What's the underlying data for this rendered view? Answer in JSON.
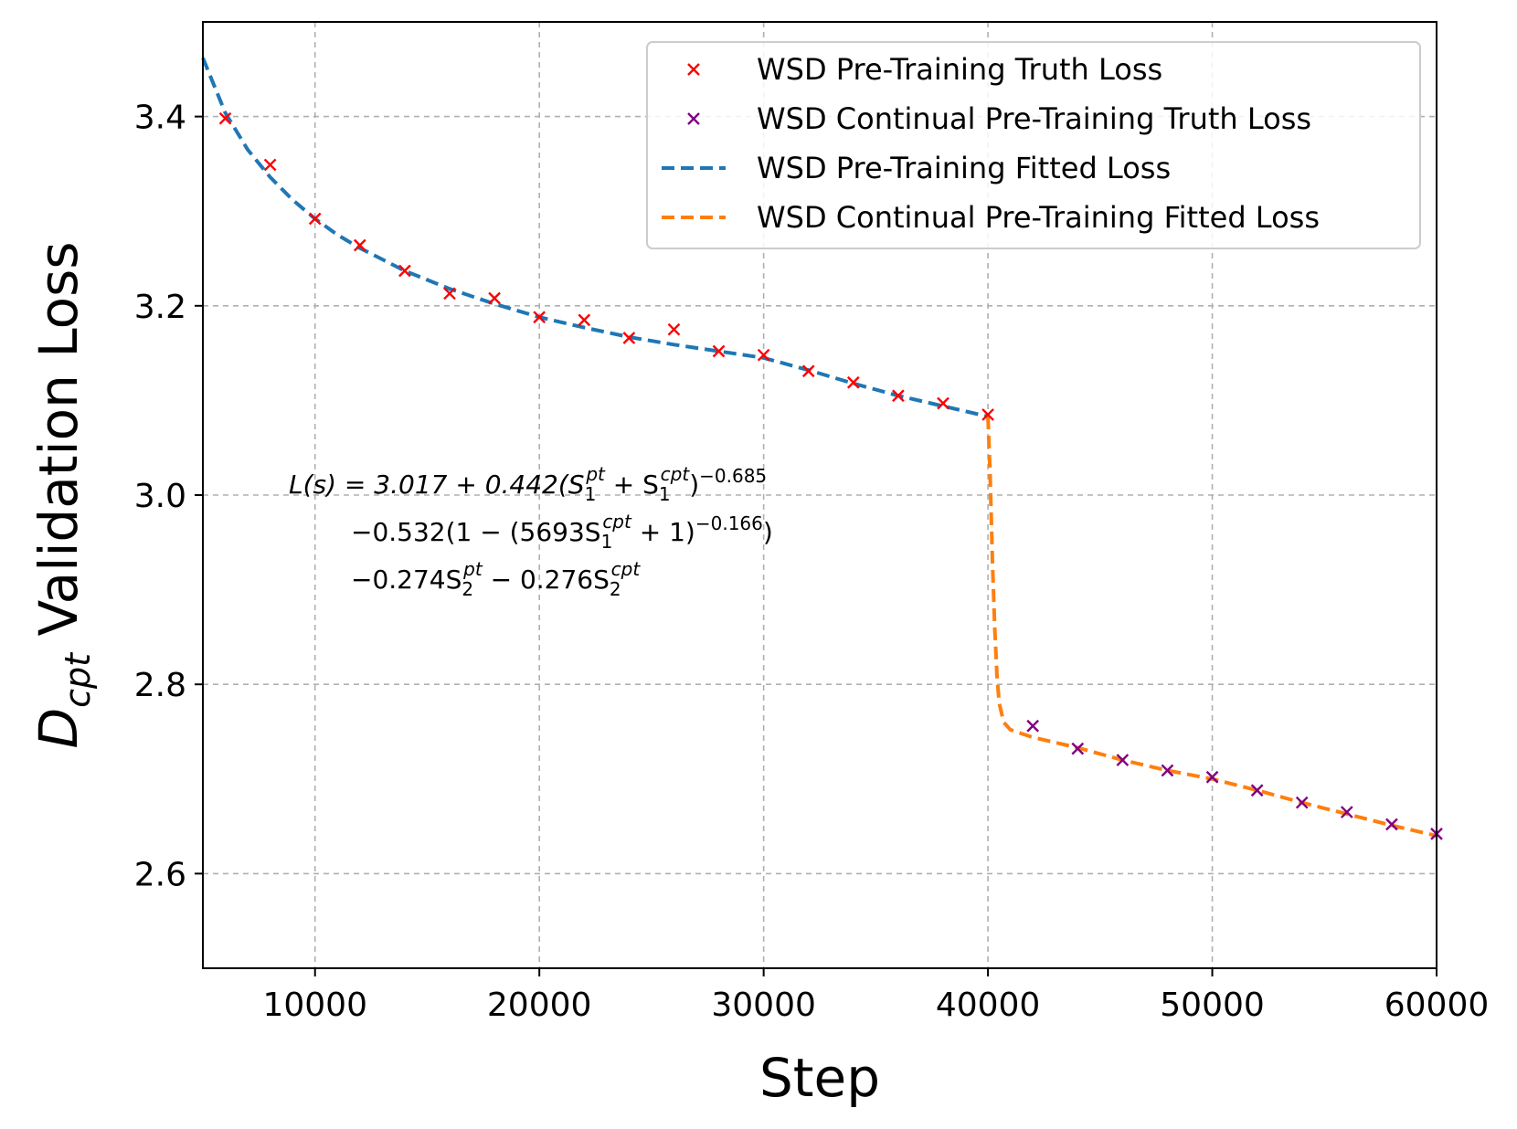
{
  "chart_data": {
    "type": "line",
    "xlabel": "Step",
    "ylabel_main": "D",
    "ylabel_sub": "cpt",
    "ylabel_rest": " Validation Loss",
    "xlim": [
      5000,
      60000
    ],
    "ylim": [
      2.5,
      3.5
    ],
    "x_ticks": [
      10000,
      20000,
      30000,
      40000,
      50000,
      60000
    ],
    "y_ticks": [
      2.6,
      2.8,
      3.0,
      3.2,
      3.4
    ],
    "y_tick_labels": [
      "2.6",
      "2.8",
      "3.0",
      "3.2",
      "3.4"
    ],
    "grid": true,
    "legend_position": "top-right",
    "colors": {
      "pt_truth": "#ff0000",
      "cpt_truth": "#800080",
      "pt_fit": "#1f77b4",
      "cpt_fit": "#ff7f0e"
    },
    "series": [
      {
        "name": "WSD Pre-Training Truth Loss",
        "kind": "marker",
        "color_key": "pt_truth",
        "x": [
          6000,
          8000,
          10000,
          12000,
          14000,
          16000,
          18000,
          20000,
          22000,
          24000,
          26000,
          28000,
          30000,
          32000,
          34000,
          36000,
          38000,
          40000
        ],
        "y": [
          3.398,
          3.349,
          3.292,
          3.264,
          3.237,
          3.213,
          3.208,
          3.188,
          3.185,
          3.166,
          3.175,
          3.152,
          3.148,
          3.131,
          3.119,
          3.105,
          3.097,
          3.085
        ]
      },
      {
        "name": "WSD Continual Pre-Training Truth Loss",
        "kind": "marker",
        "color_key": "cpt_truth",
        "x": [
          42000,
          44000,
          46000,
          48000,
          50000,
          52000,
          54000,
          56000,
          58000,
          60000
        ],
        "y": [
          2.756,
          2.732,
          2.72,
          2.709,
          2.702,
          2.688,
          2.675,
          2.665,
          2.652,
          2.642
        ]
      },
      {
        "name": "WSD Pre-Training Fitted Loss",
        "kind": "line",
        "color_key": "pt_fit",
        "x": [
          5000,
          6000,
          7000,
          8000,
          9000,
          10000,
          11000,
          12000,
          13000,
          14000,
          16000,
          18000,
          20000,
          22000,
          24000,
          26000,
          28000,
          30000,
          32000,
          34000,
          36000,
          38000,
          40000
        ],
        "y": [
          3.462,
          3.404,
          3.365,
          3.336,
          3.312,
          3.292,
          3.275,
          3.261,
          3.249,
          3.237,
          3.218,
          3.202,
          3.188,
          3.177,
          3.167,
          3.159,
          3.152,
          3.145,
          3.132,
          3.118,
          3.105,
          3.094,
          3.083
        ]
      },
      {
        "name": "WSD Continual Pre-Training Fitted Loss",
        "kind": "line",
        "color_key": "cpt_fit",
        "x": [
          40000,
          40100,
          40200,
          40300,
          40400,
          40500,
          40700,
          41000,
          41500,
          42000,
          44000,
          46000,
          48000,
          50000,
          52000,
          54000,
          56000,
          58000,
          60000
        ],
        "y": [
          3.083,
          3.02,
          2.93,
          2.86,
          2.81,
          2.78,
          2.76,
          2.752,
          2.748,
          2.744,
          2.733,
          2.72,
          2.709,
          2.7,
          2.688,
          2.675,
          2.663,
          2.651,
          2.64
        ]
      }
    ],
    "annotation": {
      "line1": {
        "prefix": "L(s) = 3.017 + 0.442(S",
        "sub1": "1",
        "sup1": "pt",
        "mid": " + S",
        "sub2": "1",
        "sup2": "cpt",
        "end": ")",
        "exp": "−0.685"
      },
      "line2": {
        "prefix": "−0.532(1 − (5693S",
        "sub1": "1",
        "sup1": "cpt",
        "mid": " + 1)",
        "exp": "−0.166",
        "end": ")"
      },
      "line3": {
        "prefix": "−0.274S",
        "sub1": "2",
        "sup1": "pt",
        "mid": " − 0.276S",
        "sub2": "2",
        "sup2": "cpt"
      }
    }
  }
}
